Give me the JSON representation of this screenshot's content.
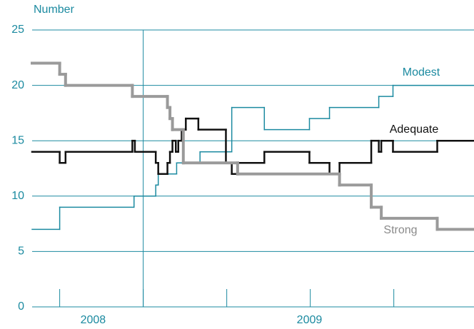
{
  "chart_data": {
    "type": "step-line",
    "y_axis_label": "Number",
    "ylim": [
      0,
      25
    ],
    "yticks": [
      0,
      5,
      10,
      15,
      20,
      25
    ],
    "xlim": [
      0,
      5.29
    ],
    "xticks": [
      0.33,
      1.33,
      2.33,
      3.33,
      4.33
    ],
    "year_labels": [
      {
        "value": 0.73,
        "label": "2008"
      },
      {
        "value": 3.32,
        "label": "2009"
      }
    ],
    "vline": 1.33,
    "grid": true,
    "axis_color": "#1b8aa0",
    "series": [
      {
        "name": "Modest",
        "color": "#1b8aa0",
        "width": 1.5,
        "x": [
          0,
          0.33,
          1.22,
          1.48,
          1.51,
          1.73,
          2.01,
          2.39,
          2.78,
          3.32,
          3.56,
          4.15,
          4.32
        ],
        "values": [
          7,
          9,
          10,
          11,
          12,
          13,
          14,
          18,
          16,
          17,
          18,
          19,
          20
        ]
      },
      {
        "name": "Adequate",
        "color": "#111111",
        "width": 2.5,
        "x": [
          0,
          0.33,
          0.4,
          1.2,
          1.23,
          1.48,
          1.51,
          1.62,
          1.65,
          1.68,
          1.72,
          1.75,
          1.79,
          1.84,
          1.99,
          2.32,
          2.39,
          2.46,
          2.78,
          3.32,
          3.56,
          3.68,
          4.06,
          4.15,
          4.18,
          4.32,
          4.85
        ],
        "values": [
          14,
          13,
          14,
          15,
          14,
          13,
          12,
          13,
          14,
          15,
          14,
          15,
          16,
          17,
          16,
          13,
          12,
          13,
          14,
          13,
          12,
          13,
          15,
          14,
          15,
          14,
          15
        ]
      },
      {
        "name": "Strong",
        "color": "#9a9a9a",
        "width": 4,
        "x": [
          0,
          0.33,
          0.4,
          1.2,
          1.62,
          1.65,
          1.68,
          1.81,
          2.46,
          3.68,
          4.06,
          4.18,
          4.85
        ],
        "values": [
          22,
          21,
          20,
          19,
          18,
          17,
          16,
          13,
          12,
          11,
          9,
          8,
          7
        ]
      }
    ]
  }
}
